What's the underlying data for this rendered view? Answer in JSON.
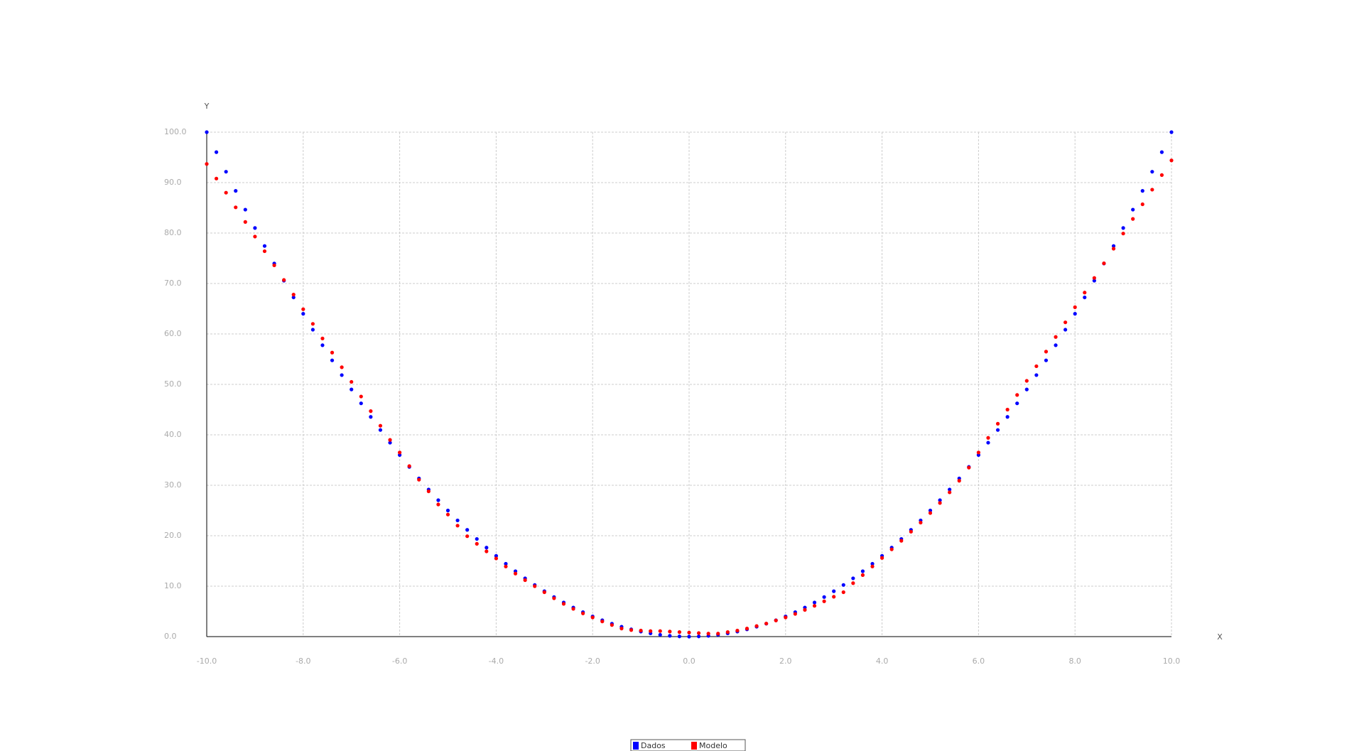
{
  "chart_data": {
    "type": "scatter",
    "x_label": "X",
    "y_label": "Y",
    "x": [
      -10,
      -9.8,
      -9.6,
      -9.4,
      -9.2,
      -9,
      -8.8,
      -8.6,
      -8.4,
      -8.2,
      -8,
      -7.8,
      -7.6,
      -7.4,
      -7.2,
      -7,
      -6.8,
      -6.6,
      -6.4,
      -6.2,
      -6,
      -5.8,
      -5.6,
      -5.4,
      -5.2,
      -5,
      -4.8,
      -4.6,
      -4.4,
      -4.2,
      -4,
      -3.8,
      -3.6,
      -3.4,
      -3.2,
      -3,
      -2.8,
      -2.6,
      -2.4,
      -2.2,
      -2,
      -1.8,
      -1.6,
      -1.4,
      -1.2,
      -1,
      -0.8,
      -0.6,
      -0.4,
      -0.2,
      0,
      0.2,
      0.4,
      0.6,
      0.8,
      1,
      1.2,
      1.4,
      1.6,
      1.8,
      2,
      2.2,
      2.4,
      2.6,
      2.8,
      3,
      3.2,
      3.4,
      3.6,
      3.8,
      4,
      4.2,
      4.4,
      4.6,
      4.8,
      5,
      5.2,
      5.4,
      5.6,
      5.8,
      6,
      6.2,
      6.4,
      6.6,
      6.8,
      7,
      7.2,
      7.4,
      7.6,
      7.8,
      8,
      8.2,
      8.4,
      8.6,
      8.8,
      9,
      9.2,
      9.4,
      9.6,
      9.8,
      10
    ],
    "series": [
      {
        "name": "Dados",
        "color": "#0000ff",
        "values": [
          100,
          96.04,
          92.16,
          88.36,
          84.64,
          81,
          77.44,
          73.96,
          70.56,
          67.24,
          64,
          60.84,
          57.76,
          54.76,
          51.84,
          49,
          46.24,
          43.56,
          40.96,
          38.44,
          36,
          33.64,
          31.36,
          29.16,
          27.04,
          25,
          23.04,
          21.16,
          19.36,
          17.64,
          16,
          14.44,
          12.96,
          11.56,
          10.24,
          9,
          7.84,
          6.76,
          5.76,
          4.84,
          4,
          3.24,
          2.56,
          1.96,
          1.44,
          1,
          0.64,
          0.36,
          0.16,
          0.04,
          0,
          0.04,
          0.16,
          0.36,
          0.64,
          1,
          1.44,
          1.96,
          2.56,
          3.24,
          4,
          4.84,
          5.76,
          6.76,
          7.84,
          9,
          10.24,
          11.56,
          12.96,
          14.44,
          16,
          17.64,
          19.36,
          21.16,
          23.04,
          25,
          27.04,
          29.16,
          31.36,
          33.64,
          36,
          38.44,
          40.96,
          43.56,
          46.24,
          49,
          51.84,
          54.76,
          57.76,
          60.84,
          64,
          67.24,
          70.56,
          73.96,
          77.44,
          81,
          84.64,
          88.36,
          92.16,
          96.04,
          100
        ]
      },
      {
        "name": "Modelo",
        "color": "#ff0000",
        "values": [
          93.7,
          90.8,
          88.0,
          85.1,
          82.2,
          79.3,
          76.4,
          73.6,
          70.7,
          67.8,
          64.9,
          62.0,
          59.1,
          56.3,
          53.4,
          50.5,
          47.6,
          44.7,
          41.8,
          39.0,
          36.5,
          33.8,
          31.1,
          28.8,
          26.2,
          24.2,
          22.0,
          19.9,
          18.4,
          16.9,
          15.5,
          13.9,
          12.5,
          11.2,
          10.0,
          8.8,
          7.6,
          6.5,
          5.5,
          4.6,
          3.8,
          3.0,
          2.3,
          1.6,
          1.3,
          1.2,
          1.1,
          1.1,
          1.0,
          0.9,
          0.8,
          0.7,
          0.6,
          0.6,
          0.9,
          1.2,
          1.6,
          2.1,
          2.6,
          3.2,
          3.8,
          4.5,
          5.3,
          6.1,
          7.0,
          7.9,
          8.8,
          10.6,
          12.2,
          13.9,
          15.6,
          17.3,
          19.0,
          20.8,
          22.6,
          24.5,
          26.5,
          28.6,
          30.9,
          33.5,
          36.5,
          39.4,
          42.2,
          45.0,
          47.9,
          50.7,
          53.6,
          56.5,
          59.4,
          62.3,
          65.3,
          68.2,
          71.1,
          74.0,
          76.9,
          79.9,
          82.8,
          85.7,
          88.6,
          91.5,
          94.4
        ]
      }
    ],
    "xlim": [
      -10,
      10
    ],
    "ylim": [
      0,
      100
    ],
    "xticks": [
      {
        "value": -10,
        "label": "-10.0"
      },
      {
        "value": -8,
        "label": "-8.0"
      },
      {
        "value": -6,
        "label": "-6.0"
      },
      {
        "value": -4,
        "label": "-4.0"
      },
      {
        "value": -2,
        "label": "-2.0"
      },
      {
        "value": 0,
        "label": "0.0"
      },
      {
        "value": 2,
        "label": "2.0"
      },
      {
        "value": 4,
        "label": "4.0"
      },
      {
        "value": 6,
        "label": "6.0"
      },
      {
        "value": 8,
        "label": "8.0"
      },
      {
        "value": 10,
        "label": "10.0"
      }
    ],
    "yticks": [
      {
        "value": 0,
        "label": "0.0"
      },
      {
        "value": 10,
        "label": "10.0"
      },
      {
        "value": 20,
        "label": "20.0"
      },
      {
        "value": 30,
        "label": "30.0"
      },
      {
        "value": 40,
        "label": "40.0"
      },
      {
        "value": 50,
        "label": "50.0"
      },
      {
        "value": 60,
        "label": "60.0"
      },
      {
        "value": 70,
        "label": "70.0"
      },
      {
        "value": 80,
        "label": "80.0"
      },
      {
        "value": 90,
        "label": "90.0"
      },
      {
        "value": 100,
        "label": "100.0"
      }
    ],
    "grid": true,
    "legend": "bottom"
  }
}
